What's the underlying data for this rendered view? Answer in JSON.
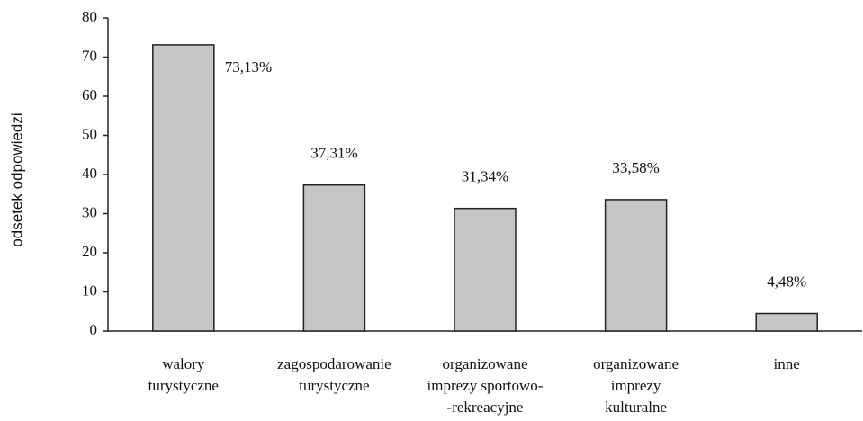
{
  "chart_data": {
    "type": "bar",
    "y_label": "odsetek odpowiedzi",
    "categories": [
      [
        "walory",
        "turystyczne"
      ],
      [
        "zagospodarowanie",
        "turystyczne"
      ],
      [
        "organizowane",
        "imprezy sportowo-",
        "-rekreacyjne"
      ],
      [
        "organizowane",
        "imprezy",
        "kulturalne"
      ],
      [
        "inne"
      ]
    ],
    "values": [
      73.13,
      37.31,
      31.34,
      33.58,
      4.48
    ],
    "value_labels": [
      "73,13%",
      "37,31%",
      "31,34%",
      "33,58%",
      "4,48%"
    ],
    "color": "#c6c6c6",
    "ylim": [
      0,
      80
    ],
    "yticks": [
      0,
      10,
      20,
      30,
      40,
      50,
      60,
      70,
      80
    ],
    "grid": false
  }
}
